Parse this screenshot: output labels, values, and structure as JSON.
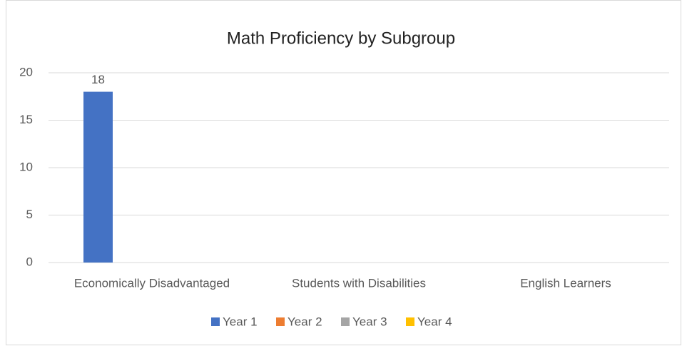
{
  "chart_data": {
    "type": "bar",
    "title": "Math Proficiency by Subgroup",
    "categories": [
      "Economically Disadvantaged",
      "Students with Disabilities",
      "English Learners"
    ],
    "series": [
      {
        "name": "Year 1",
        "color": "#4472c4",
        "values": [
          18,
          null,
          null
        ]
      },
      {
        "name": "Year 2",
        "color": "#ed7d31",
        "values": [
          null,
          null,
          null
        ]
      },
      {
        "name": "Year 3",
        "color": "#a5a5a5",
        "values": [
          null,
          null,
          null
        ]
      },
      {
        "name": "Year 4",
        "color": "#ffc000",
        "values": [
          null,
          null,
          null
        ]
      }
    ],
    "ylim": [
      0,
      20
    ],
    "yticks": [
      0,
      5,
      10,
      15,
      20
    ],
    "grid": true,
    "legend": "bottom"
  }
}
